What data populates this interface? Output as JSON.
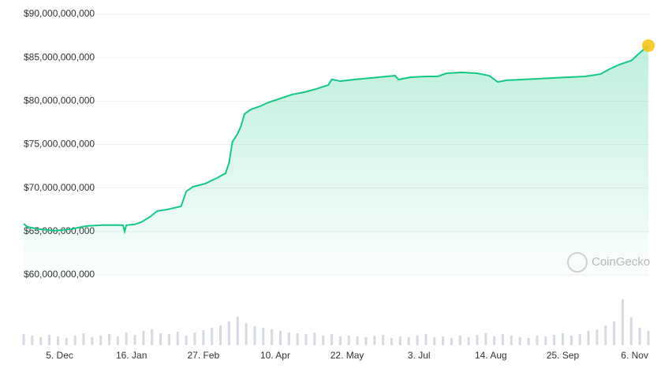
{
  "chart_data": [
    {
      "type": "area",
      "color": "#16c784",
      "grid": true,
      "watermark": "CoinGecko",
      "xlim": [
        0,
        365
      ],
      "ylim": [
        60000000000,
        90000000000
      ],
      "xticks": [
        {
          "value": 21,
          "label": "5. Dec"
        },
        {
          "value": 63,
          "label": "16. Jan"
        },
        {
          "value": 105,
          "label": "27. Feb"
        },
        {
          "value": 147,
          "label": "10. Apr"
        },
        {
          "value": 189,
          "label": "22. May"
        },
        {
          "value": 231,
          "label": "3. Jul"
        },
        {
          "value": 273,
          "label": "14. Aug"
        },
        {
          "value": 315,
          "label": "25. Sep"
        },
        {
          "value": 357,
          "label": "6. Nov"
        }
      ],
      "yticks": [
        {
          "value": 60000000000,
          "label": "$60,000,000,000"
        },
        {
          "value": 65000000000,
          "label": "$65,000,000,000"
        },
        {
          "value": 70000000000,
          "label": "$70,000,000,000"
        },
        {
          "value": 75000000000,
          "label": "$75,000,000,000"
        },
        {
          "value": 80000000000,
          "label": "$80,000,000,000"
        },
        {
          "value": 85000000000,
          "label": "$85,000,000,000"
        },
        {
          "value": 90000000000,
          "label": "$90,000,000,000"
        }
      ],
      "x": [
        0,
        2,
        9,
        18,
        28,
        32,
        37,
        46,
        55,
        58,
        59,
        60,
        65,
        69,
        74,
        78,
        83,
        90,
        92,
        95,
        99,
        106,
        113,
        118,
        120,
        122,
        125,
        127,
        129,
        132,
        134,
        138,
        143,
        150,
        157,
        164,
        171,
        178,
        180,
        185,
        194,
        203,
        212,
        217,
        219,
        226,
        235,
        242,
        247,
        256,
        265,
        272,
        277,
        282,
        291,
        300,
        309,
        318,
        328,
        337,
        342,
        348,
        355,
        360,
        365
      ],
      "values": [
        65900000000,
        65550000000,
        65270000000,
        65100000000,
        65270000000,
        65450000000,
        65640000000,
        65730000000,
        65730000000,
        65730000000,
        65000000000,
        65730000000,
        65820000000,
        66100000000,
        66720000000,
        67350000000,
        67500000000,
        67800000000,
        67900000000,
        69600000000,
        70160000000,
        70500000000,
        71160000000,
        71700000000,
        72900000000,
        75330000000,
        76230000000,
        77140000000,
        78500000000,
        78950000000,
        79130000000,
        79400000000,
        79850000000,
        80300000000,
        80760000000,
        81030000000,
        81400000000,
        81850000000,
        82500000000,
        82300000000,
        82500000000,
        82660000000,
        82840000000,
        82930000000,
        82480000000,
        82750000000,
        82840000000,
        82840000000,
        83200000000,
        83300000000,
        83200000000,
        82930000000,
        82200000000,
        82400000000,
        82480000000,
        82570000000,
        82660000000,
        82750000000,
        82840000000,
        83100000000,
        83660000000,
        84200000000,
        84650000000,
        85560000000,
        86380000000
      ]
    },
    {
      "type": "bar",
      "color": "#d5d9e1",
      "xlim": [
        0,
        365
      ],
      "ylim": [
        0,
        60
      ],
      "x": [
        0,
        5,
        10,
        15,
        20,
        25,
        30,
        35,
        40,
        45,
        50,
        55,
        60,
        65,
        70,
        75,
        80,
        85,
        90,
        95,
        100,
        105,
        110,
        115,
        120,
        125,
        130,
        135,
        140,
        145,
        150,
        155,
        160,
        165,
        170,
        175,
        180,
        185,
        190,
        195,
        200,
        205,
        210,
        215,
        220,
        225,
        230,
        235,
        240,
        245,
        250,
        255,
        260,
        265,
        270,
        275,
        280,
        285,
        290,
        295,
        300,
        305,
        310,
        315,
        320,
        325,
        330,
        335,
        340,
        345,
        350,
        355,
        360,
        365
      ],
      "values": [
        14,
        12,
        10,
        13,
        11,
        9,
        12,
        15,
        10,
        12,
        14,
        11,
        16,
        13,
        18,
        20,
        15,
        14,
        17,
        12,
        16,
        19,
        22,
        25,
        30,
        36,
        28,
        24,
        22,
        20,
        18,
        16,
        15,
        14,
        16,
        12,
        14,
        11,
        12,
        11,
        10,
        12,
        13,
        9,
        11,
        10,
        12,
        14,
        10,
        11,
        9,
        12,
        10,
        13,
        15,
        11,
        14,
        12,
        10,
        9,
        12,
        11,
        13,
        15,
        12,
        14,
        18,
        20,
        25,
        30,
        58,
        35,
        22,
        18
      ]
    }
  ]
}
